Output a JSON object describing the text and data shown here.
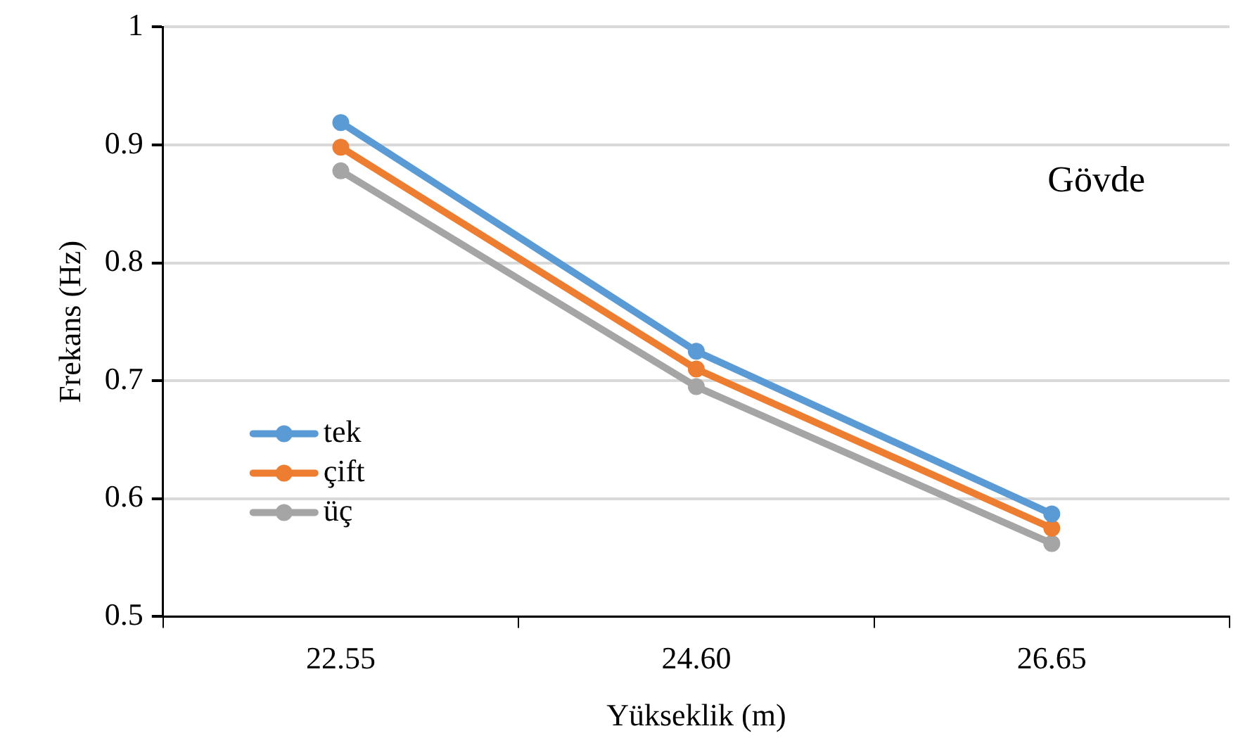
{
  "chart_data": {
    "type": "line",
    "xlabel": "Yükseklik (m)",
    "ylabel": "Frekans (Hz)",
    "categories": [
      "22.55",
      "24.60",
      "26.65"
    ],
    "series": [
      {
        "name": "tek",
        "color": "#5b9bd5",
        "values": [
          0.919,
          0.725,
          0.587
        ]
      },
      {
        "name": "çift",
        "color": "#ed7d31",
        "values": [
          0.898,
          0.71,
          0.575
        ]
      },
      {
        "name": "üç",
        "color": "#a5a5a5",
        "values": [
          0.878,
          0.695,
          0.562
        ]
      }
    ],
    "ylim": [
      0.5,
      1
    ],
    "yticks": [
      0.5,
      0.6,
      0.7,
      0.8,
      0.9,
      1
    ],
    "grid": "y",
    "legend": "bottom left",
    "marker": "circle",
    "line_style": "solid",
    "annotations": [
      "Gövde"
    ]
  }
}
